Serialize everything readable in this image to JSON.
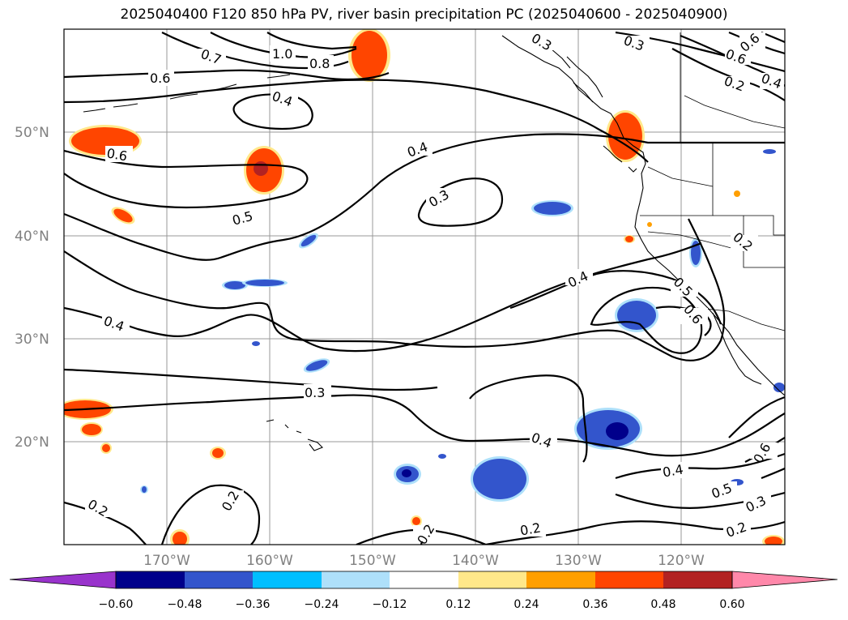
{
  "title": "2025040400 F120 850 hPa PV, river basin precipitation PC (2025040600 - 2025040900)",
  "lat_labels": [
    "50°N",
    "40°N",
    "30°N",
    "20°N"
  ],
  "lon_labels": [
    "170°W",
    "160°W",
    "150°W",
    "140°W",
    "130°W",
    "120°W"
  ],
  "contour_labels": [
    "0.7",
    "1.0",
    "0.8",
    "0.6",
    "0.4",
    "0.3",
    "0.3",
    "0.6",
    "0.6",
    "0.2",
    "0.4",
    "0.6",
    "0.4",
    "0.3",
    "0.5",
    "0.4",
    "0.4",
    "0.5",
    "0.6",
    "0.2",
    "0.3",
    "0.4",
    "0.4",
    "0.6",
    "0.5",
    "0.3",
    "0.2",
    "0.2",
    "0.2",
    "0.2",
    "0.2"
  ],
  "colorbar": {
    "colors": [
      "#9933cc",
      "#00008b",
      "#3355cc",
      "#00bfff",
      "#aee0fa",
      "#ffffff",
      "#ffe88a",
      "#ff9f00",
      "#ff4500",
      "#b22222",
      "#ff88aa"
    ],
    "ticks": [
      "−0.60",
      "−0.48",
      "−0.36",
      "−0.24",
      "−0.12",
      "0.12",
      "0.24",
      "0.36",
      "0.48",
      "0.60"
    ]
  },
  "shading_colors": {
    "positive_light": "#ffe88a",
    "positive_mid": "#ff9f00",
    "positive_strong": "#ff4500",
    "negative_light": "#aee0fa",
    "negative_mid": "#00bfff",
    "negative_strong": "#3355cc",
    "negative_max": "#00008b"
  }
}
